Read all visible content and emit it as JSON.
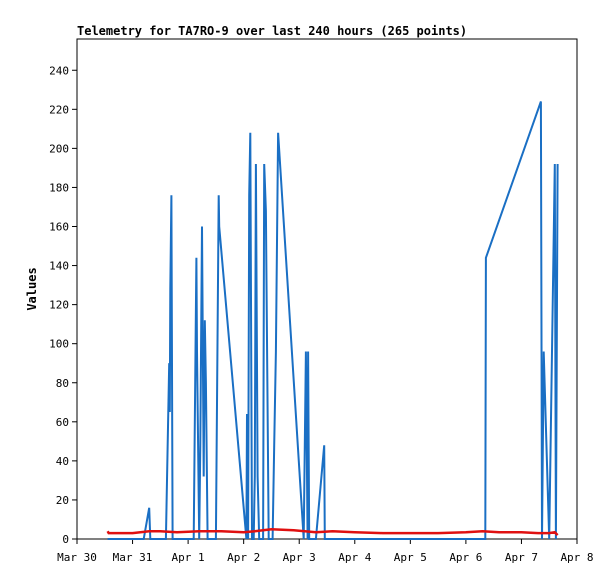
{
  "chart_data": {
    "type": "line",
    "title": "Telemetry for TA7RO-9 over last 240 hours (265 points)",
    "xlabel": "",
    "ylabel": "Values",
    "x_unit": "days since Mar 30",
    "xlim": [
      0,
      9
    ],
    "ylim": [
      0,
      256
    ],
    "x_ticks": [
      {
        "label": "Mar 30",
        "value": 0
      },
      {
        "label": "Mar 31",
        "value": 1
      },
      {
        "label": "Apr 1",
        "value": 2
      },
      {
        "label": "Apr 2",
        "value": 3
      },
      {
        "label": "Apr 3",
        "value": 4
      },
      {
        "label": "Apr 4",
        "value": 5
      },
      {
        "label": "Apr 5",
        "value": 6
      },
      {
        "label": "Apr 6",
        "value": 7
      },
      {
        "label": "Apr 7",
        "value": 8
      },
      {
        "label": "Apr 8",
        "value": 9
      }
    ],
    "y_ticks": [
      0,
      20,
      40,
      60,
      80,
      100,
      120,
      140,
      160,
      180,
      200,
      220,
      240
    ],
    "grid": false,
    "series": [
      {
        "color": "#1a6fc4",
        "x": [
          0.55,
          1.2,
          1.3,
          1.32,
          1.6,
          1.66,
          1.67,
          1.68,
          1.7,
          1.72,
          1.73,
          1.74,
          1.75,
          2.1,
          2.15,
          2.16,
          2.18,
          2.2,
          2.22,
          2.25,
          2.28,
          2.3,
          2.32,
          2.35,
          2.38,
          2.5,
          2.55,
          2.56,
          3.05,
          3.06,
          3.08,
          3.1,
          3.12,
          3.15,
          3.18,
          3.2,
          3.22,
          3.25,
          3.28,
          3.3,
          3.35,
          3.37,
          3.4,
          3.45,
          3.5,
          3.52,
          3.55,
          3.58,
          3.62,
          4.08,
          4.1,
          4.12,
          4.15,
          4.16,
          4.18,
          4.2,
          4.3,
          4.45,
          4.46,
          4.47,
          5.35,
          7.35,
          7.36,
          8.35,
          8.37,
          8.4,
          8.5,
          8.6,
          8.62,
          8.65
        ],
        "values": [
          0,
          0,
          16,
          0,
          0,
          90,
          65,
          128,
          176,
          0,
          0,
          0,
          0,
          0,
          144,
          96,
          48,
          0,
          48,
          160,
          32,
          112,
          80,
          0,
          0,
          0,
          176,
          160,
          0,
          64,
          0,
          176,
          208,
          0,
          0,
          32,
          192,
          32,
          0,
          0,
          0,
          192,
          168,
          0,
          0,
          0,
          48,
          96,
          208,
          0,
          48,
          96,
          0,
          96,
          0,
          0,
          0,
          48,
          0,
          0,
          0,
          0,
          144,
          224,
          0,
          96,
          0,
          192,
          0,
          192
        ]
      },
      {
        "color": "#e01010",
        "x": [
          0.55,
          0.57,
          1.0,
          1.3,
          1.5,
          1.8,
          2.2,
          2.6,
          3.0,
          3.2,
          3.5,
          3.9,
          4.3,
          4.6,
          5.0,
          5.5,
          6.0,
          6.5,
          7.0,
          7.3,
          7.6,
          8.0,
          8.3,
          8.5,
          8.6,
          8.65
        ],
        "values": [
          4,
          3,
          3,
          4,
          4,
          3.5,
          4,
          4,
          3.5,
          4,
          5,
          4.5,
          3.5,
          4,
          3.5,
          3,
          3,
          3,
          3.5,
          4,
          3.5,
          3.5,
          3,
          3,
          3.5,
          2
        ]
      }
    ]
  }
}
